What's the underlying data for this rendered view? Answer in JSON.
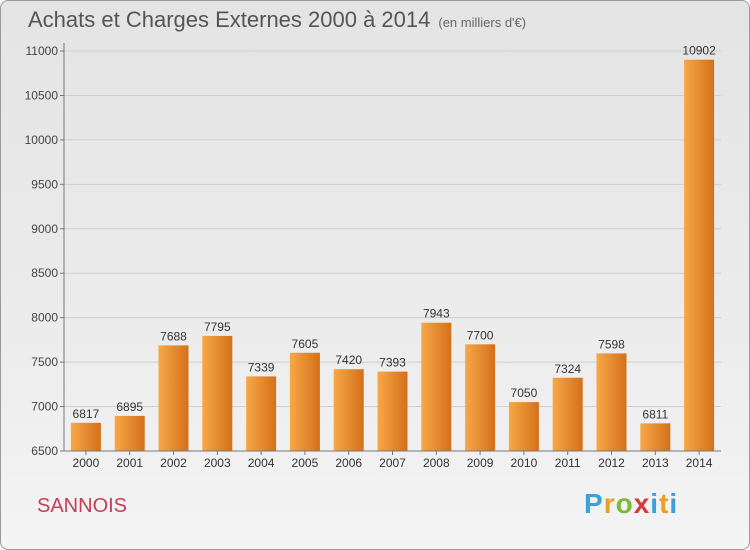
{
  "chart_data": {
    "type": "bar",
    "title": "Achats et Charges Externes 2000 à 2014",
    "subtitle": "(en milliers d'€)",
    "categories": [
      "2000",
      "2001",
      "2002",
      "2003",
      "2004",
      "2005",
      "2006",
      "2007",
      "2008",
      "2009",
      "2010",
      "2011",
      "2012",
      "2013",
      "2014"
    ],
    "values": [
      6817,
      6895,
      7688,
      7795,
      7339,
      7605,
      7420,
      7393,
      7943,
      7700,
      7050,
      7324,
      7598,
      6811,
      10902
    ],
    "ylim": [
      6500,
      11000
    ],
    "yticks": [
      6500,
      7000,
      7500,
      8000,
      8500,
      9000,
      9500,
      10000,
      10500,
      11000
    ],
    "grid": true,
    "bar_color": "#f0952e"
  },
  "footer": {
    "commune": "SANNOIS",
    "logo": "Proxiti"
  }
}
